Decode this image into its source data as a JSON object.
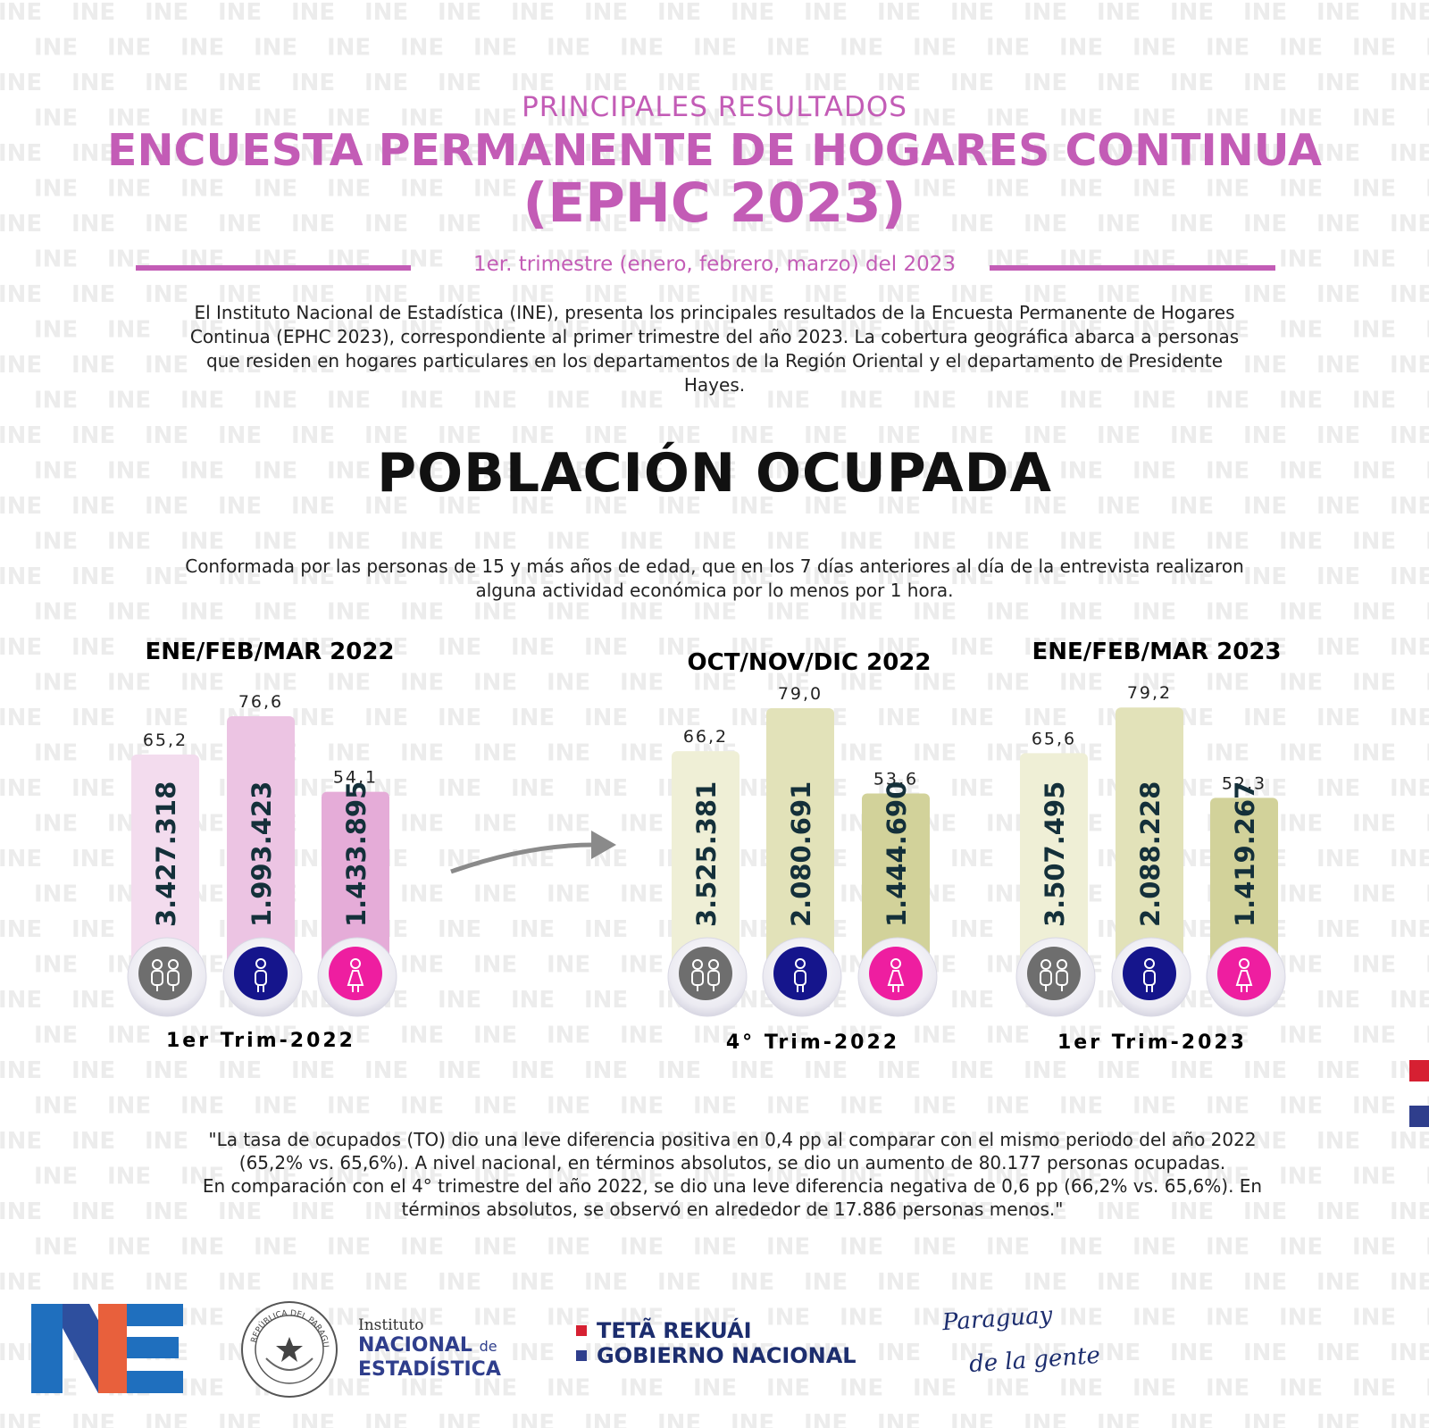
{
  "header": {
    "eyebrow": "PRINCIPALES RESULTADOS",
    "title_line1": "ENCUESTA PERMANENTE DE HOGARES CONTINUA",
    "title_line2": "(EPHC 2023)",
    "period": "1er. trimestre  (enero, febrero, marzo) del 2023"
  },
  "intro": "El Instituto Nacional de Estadística (INE), presenta los principales resultados de la Encuesta Permanente de Hogares Continua (EPHC 2023), correspondiente al primer trimestre del año 2023.  La cobertura geográfica abarca a personas que residen en hogares particulares en los departamentos de la Región Oriental y el departamento de Presidente Hayes.",
  "section": {
    "title": "POBLACIÓN OCUPADA",
    "definition": "Conformada por las personas de 15 y más años de edad, que en los 7 días anteriores al día de la entrevista realizaron alguna actividad económica por lo menos por 1 hora."
  },
  "colors": {
    "accent": "#c35cb6",
    "pink_total": "#f3dcee",
    "pink_men": "#ecc4e3",
    "pink_women": "#e5acd8",
    "olive_total": "#efefd6",
    "olive_men": "#e2e2b9",
    "olive_women": "#d2d29a",
    "icon_total": "#6e6e6e",
    "icon_men": "#15158c",
    "icon_women": "#ee1ea0",
    "watermark": "#ececec"
  },
  "chart_data": {
    "type": "bar",
    "y_measure": "tasa de ocupación (%)",
    "series_categories": [
      "total",
      "men",
      "women"
    ],
    "icons": [
      "people-icon",
      "man-icon",
      "woman-icon"
    ],
    "ylim": [
      0,
      100
    ],
    "groups": [
      {
        "period": "ENE/FEB/MAR 2022",
        "quarter": "1er Trim-2022",
        "rates": [
          "65,2",
          "76,6",
          "54,1"
        ],
        "rate_values": [
          65.2,
          76.6,
          54.1
        ],
        "counts": [
          "3.427.318",
          "1.993.423",
          "1.433.895"
        ],
        "palette": "pink"
      },
      {
        "period": "OCT/NOV/DIC  2022",
        "quarter": "4° Trim-2022",
        "rates": [
          "66,2",
          "79,0",
          "53,6"
        ],
        "rate_values": [
          66.2,
          79.0,
          53.6
        ],
        "counts": [
          "3.525.381",
          "2.080.691",
          "1.444.690"
        ],
        "palette": "olive"
      },
      {
        "period": "ENE/FEB/MAR 2023",
        "quarter": "1er Trim-2023",
        "rates": [
          "65,6",
          "79,2",
          "52,3"
        ],
        "rate_values": [
          65.6,
          79.2,
          52.3
        ],
        "counts": [
          "3.507.495",
          "2.088.228",
          "1.419.267"
        ],
        "palette": "olive"
      }
    ]
  },
  "quote": {
    "line1": "\"La tasa de ocupados (TO) dio una leve diferencia  positiva en 0,4 pp al comparar con el mismo periodo del año 2022 (65,2% vs. 65,6%). A nivel nacional, en términos absolutos, se dio un aumento de  80.177 personas ocupadas.",
    "line2": "En comparación con el  4° trimestre del año 2022,  se dio una leve diferencia negativa de 0,6 pp (66,2% vs. 65,6%). En términos absolutos, se observó  en alrededor de 17.886 personas menos.\""
  },
  "footer": {
    "seal_text": "REPÚBLICA DEL PARAGUAY",
    "ine_line1": "Instituto",
    "ine_line2a": "NACIONAL",
    "ine_line2b": "de",
    "ine_line3": "ESTADÍSTICA",
    "gov_line1": "TETÃ REKUÁI",
    "gov_line2": "GOBIERNO NACIONAL",
    "slogan_line1": "Paraguay",
    "slogan_line2": "de la gente"
  },
  "watermark_text": "INE"
}
